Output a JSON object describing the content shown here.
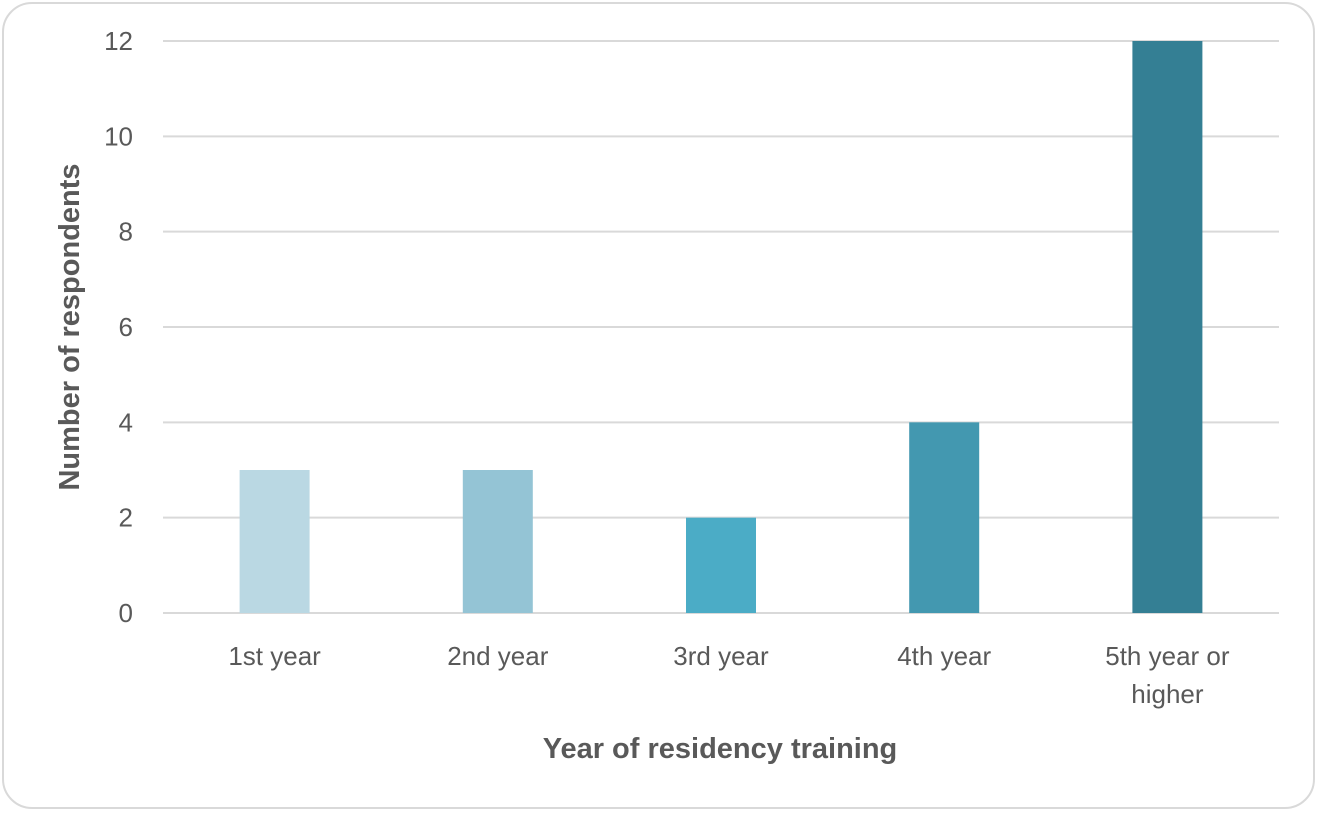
{
  "chart_data": {
    "type": "bar",
    "title": "",
    "xlabel": "Year of residency training",
    "ylabel": "Number of respondents",
    "categories": [
      [
        "1st year"
      ],
      [
        "2nd year"
      ],
      [
        "3rd year"
      ],
      [
        "4th year"
      ],
      [
        "5th year or",
        "higher"
      ]
    ],
    "values": [
      3,
      3,
      2,
      4,
      12
    ],
    "bar_colors": [
      "#bad8e3",
      "#94c4d5",
      "#4bacc6",
      "#4398b0",
      "#347f94"
    ],
    "ylim": [
      0,
      12
    ],
    "yticks": [
      0,
      2,
      4,
      6,
      8,
      10,
      12
    ],
    "grid": true,
    "legend": "none"
  }
}
